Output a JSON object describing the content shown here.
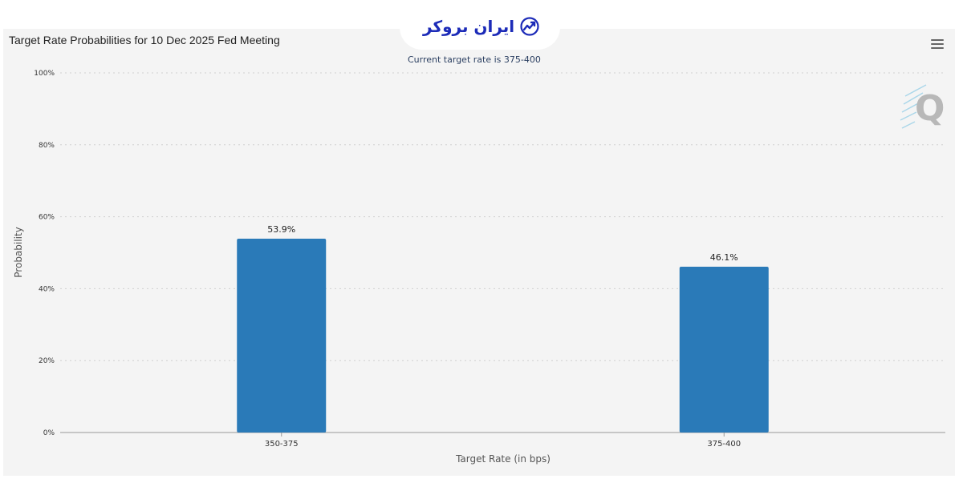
{
  "logo": {
    "text": "ایران بروکر",
    "icon": "trend-check-icon",
    "color": "#1c2bb8"
  },
  "menu": {
    "icon": "hamburger-menu-icon"
  },
  "watermark": {
    "icon": "q-logo-icon"
  },
  "chart_data": {
    "type": "bar",
    "title": "Target Rate Probabilities for 10 Dec 2025 Fed Meeting",
    "subtitle": "Current target rate is 375-400",
    "categories": [
      "350-375",
      "375-400"
    ],
    "values": [
      53.9,
      46.1
    ],
    "data_labels": [
      "53.9%",
      "46.1%"
    ],
    "xlabel": "Target Rate (in bps)",
    "ylabel": "Probability",
    "ylim": [
      0,
      100
    ],
    "yticks": [
      0,
      20,
      40,
      60,
      80,
      100
    ],
    "ytick_labels": [
      "0%",
      "20%",
      "40%",
      "60%",
      "80%",
      "100%"
    ],
    "grid": true,
    "bar_color": "#2a7ab8"
  }
}
